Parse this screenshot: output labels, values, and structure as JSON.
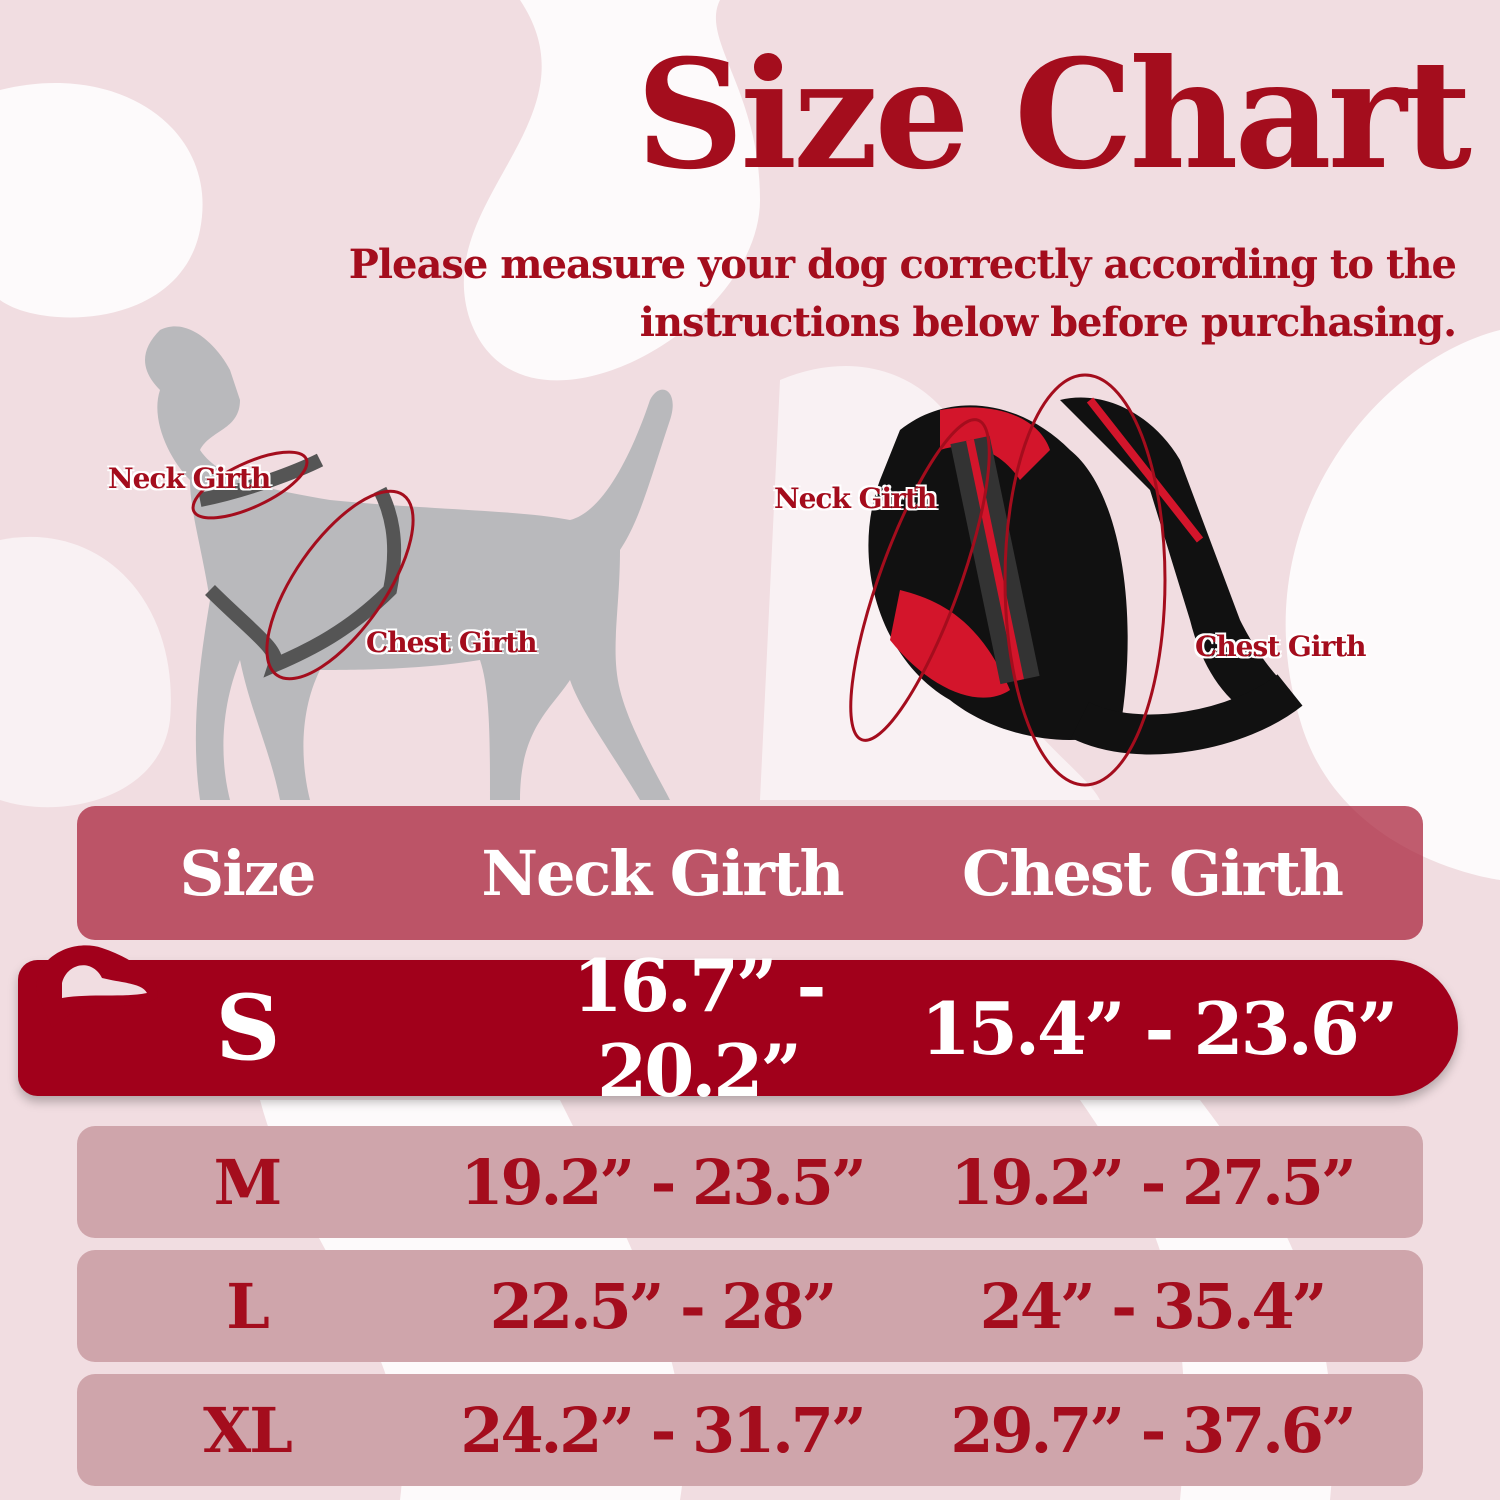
{
  "title": "Size Chart",
  "subtitle": "Please measure your dog correctly according to the instructions below before purchasing.",
  "diagram": {
    "dog_labels": {
      "neck": "Neck Girth",
      "chest": "Chest Girth"
    },
    "harness_labels": {
      "neck": "Neck Girth",
      "chest": "Chest Girth"
    }
  },
  "table": {
    "headers": [
      "Size",
      "Neck Girth",
      "Chest Girth"
    ],
    "rows": [
      {
        "size": "S",
        "neck": "16.7” - 20.2”",
        "chest": "15.4” - 23.6”",
        "highlighted": true
      },
      {
        "size": "M",
        "neck": "19.2” - 23.5”",
        "chest": "19.2” - 27.5”"
      },
      {
        "size": "L",
        "neck": "22.5” - 28”",
        "chest": "24” - 35.4”"
      },
      {
        "size": "XL",
        "neck": "24.2” - 31.7”",
        "chest": "29.7” - 37.6”"
      }
    ]
  },
  "colors": {
    "accent": "#a40d1d",
    "highlight_row": "#a1001b",
    "row": "#cfa5ab",
    "background": "#f1dde1"
  }
}
